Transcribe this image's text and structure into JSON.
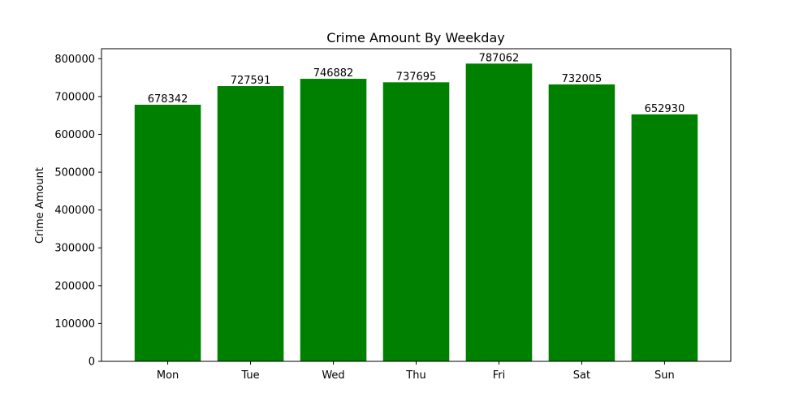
{
  "chart_data": {
    "type": "bar",
    "title": "Crime Amount By Weekday",
    "xlabel": "",
    "ylabel": "Crime Amount",
    "categories": [
      "Mon",
      "Tue",
      "Wed",
      "Thu",
      "Fri",
      "Sat",
      "Sun"
    ],
    "values": [
      678342,
      727591,
      746882,
      737695,
      787062,
      732005,
      652930
    ],
    "data_labels": [
      "678342",
      "727591",
      "746882",
      "737695",
      "787062",
      "732005",
      "652930"
    ],
    "ylim": [
      0,
      826415
    ],
    "yticks": [
      0,
      100000,
      200000,
      300000,
      400000,
      500000,
      600000,
      700000,
      800000
    ],
    "ytick_labels": [
      "0",
      "100000",
      "200000",
      "300000",
      "400000",
      "500000",
      "600000",
      "700000",
      "800000"
    ],
    "grid": false,
    "legend": "none",
    "colors": {
      "bar": "#008000",
      "axis": "#000000",
      "background": "#ffffff"
    }
  }
}
